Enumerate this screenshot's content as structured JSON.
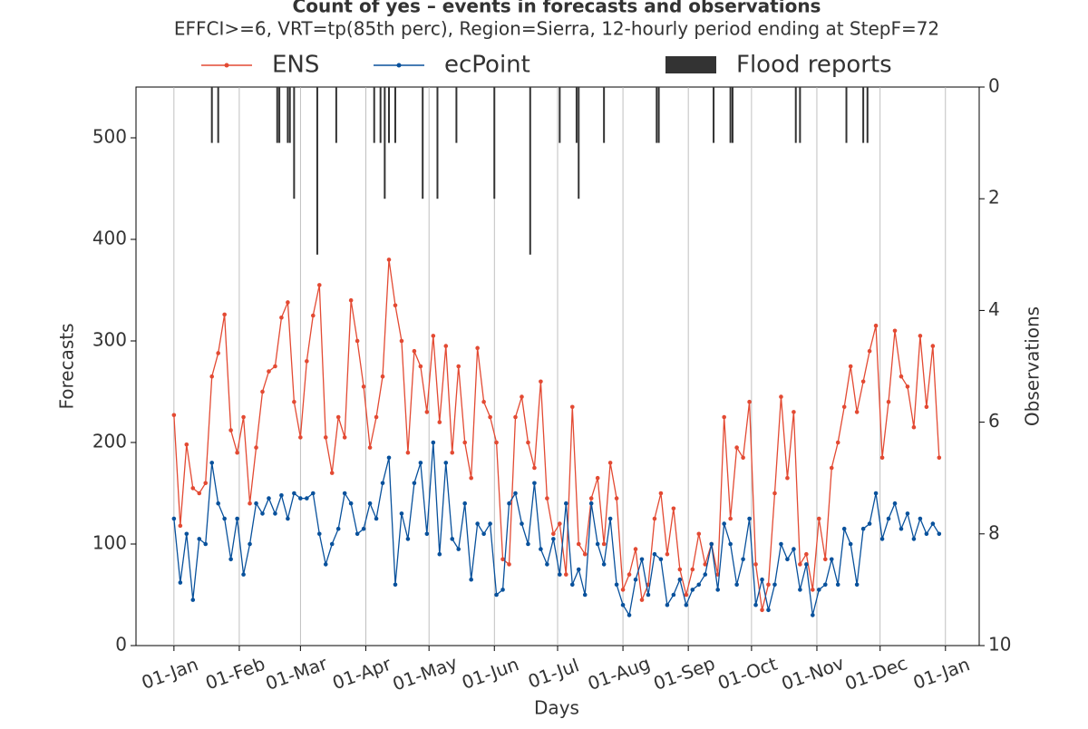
{
  "chart_data": {
    "type": "line",
    "title": "Count of yes – events in forecasts and observations",
    "subtitle": "EFFCI>=6, VRT=tp(85th perc), Region=Sierra, 12-hourly period ending at StepF=72",
    "x_label": "Days",
    "y_label": "Forecasts",
    "y2_label": "Observations",
    "xlim": [
      -18,
      382
    ],
    "xticks": [
      {
        "value": 0,
        "label": "01-Jan"
      },
      {
        "value": 31,
        "label": "01-Feb"
      },
      {
        "value": 60,
        "label": "01-Mar"
      },
      {
        "value": 91,
        "label": "01-Apr"
      },
      {
        "value": 121,
        "label": "01-May"
      },
      {
        "value": 152,
        "label": "01-Jun"
      },
      {
        "value": 182,
        "label": "01-Jul"
      },
      {
        "value": 213,
        "label": "01-Aug"
      },
      {
        "value": 244,
        "label": "01-Sep"
      },
      {
        "value": 274,
        "label": "01-Oct"
      },
      {
        "value": 305,
        "label": "01-Nov"
      },
      {
        "value": 335,
        "label": "01-Dec"
      },
      {
        "value": 366,
        "label": "01-Jan"
      }
    ],
    "ylim": [
      0,
      550
    ],
    "yticks": [
      0,
      100,
      200,
      300,
      400,
      500
    ],
    "y2lim": [
      10,
      0
    ],
    "y2ticks": [
      0,
      2,
      4,
      6,
      8,
      10
    ],
    "grid": "x",
    "legend": "top",
    "series": [
      {
        "name": "ENS",
        "color": "#e34a33",
        "x": [
          0,
          3,
          6,
          9,
          12,
          15,
          18,
          21,
          24,
          27,
          30,
          33,
          36,
          39,
          42,
          45,
          48,
          51,
          54,
          57,
          60,
          63,
          66,
          69,
          72,
          75,
          78,
          81,
          84,
          87,
          90,
          93,
          96,
          99,
          102,
          105,
          108,
          111,
          114,
          117,
          120,
          123,
          126,
          129,
          132,
          135,
          138,
          141,
          144,
          147,
          150,
          153,
          156,
          159,
          162,
          165,
          168,
          171,
          174,
          177,
          180,
          183,
          186,
          189,
          192,
          195,
          198,
          201,
          204,
          207,
          210,
          213,
          216,
          219,
          222,
          225,
          228,
          231,
          234,
          237,
          240,
          243,
          246,
          249,
          252,
          255,
          258,
          261,
          264,
          267,
          270,
          273,
          276,
          279,
          282,
          285,
          288,
          291,
          294,
          297,
          300,
          303,
          306,
          309,
          312,
          315,
          318,
          321,
          324,
          327,
          330,
          333,
          336,
          339,
          342,
          345,
          348,
          351,
          354,
          357,
          360,
          363
        ],
        "values": [
          227,
          118,
          198,
          155,
          150,
          160,
          265,
          288,
          326,
          212,
          190,
          225,
          140,
          195,
          250,
          270,
          275,
          323,
          338,
          240,
          205,
          280,
          325,
          355,
          205,
          170,
          225,
          205,
          340,
          300,
          255,
          195,
          225,
          265,
          380,
          335,
          300,
          190,
          290,
          275,
          230,
          305,
          220,
          295,
          190,
          275,
          200,
          165,
          293,
          240,
          225,
          200,
          85,
          80,
          225,
          245,
          200,
          175,
          260,
          145,
          110,
          120,
          70,
          235,
          100,
          90,
          145,
          165,
          100,
          180,
          145,
          55,
          70,
          95,
          45,
          60,
          125,
          150,
          90,
          135,
          75,
          50,
          75,
          110,
          80,
          100,
          70,
          225,
          125,
          195,
          185,
          240,
          80,
          35,
          60,
          150,
          245,
          165,
          230,
          80,
          90,
          55,
          125,
          85,
          175,
          200,
          235,
          275,
          230,
          260,
          290,
          315,
          185,
          240,
          310,
          265,
          255,
          215,
          305,
          235,
          295,
          185
        ]
      },
      {
        "name": "ecPoint",
        "color": "#08519c",
        "x": [
          0,
          3,
          6,
          9,
          12,
          15,
          18,
          21,
          24,
          27,
          30,
          33,
          36,
          39,
          42,
          45,
          48,
          51,
          54,
          57,
          60,
          63,
          66,
          69,
          72,
          75,
          78,
          81,
          84,
          87,
          90,
          93,
          96,
          99,
          102,
          105,
          108,
          111,
          114,
          117,
          120,
          123,
          126,
          129,
          132,
          135,
          138,
          141,
          144,
          147,
          150,
          153,
          156,
          159,
          162,
          165,
          168,
          171,
          174,
          177,
          180,
          183,
          186,
          189,
          192,
          195,
          198,
          201,
          204,
          207,
          210,
          213,
          216,
          219,
          222,
          225,
          228,
          231,
          234,
          237,
          240,
          243,
          246,
          249,
          252,
          255,
          258,
          261,
          264,
          267,
          270,
          273,
          276,
          279,
          282,
          285,
          288,
          291,
          294,
          297,
          300,
          303,
          306,
          309,
          312,
          315,
          318,
          321,
          324,
          327,
          330,
          333,
          336,
          339,
          342,
          345,
          348,
          351,
          354,
          357,
          360,
          363
        ],
        "values": [
          125,
          62,
          110,
          45,
          105,
          100,
          180,
          140,
          125,
          85,
          125,
          70,
          100,
          140,
          130,
          145,
          130,
          148,
          125,
          150,
          145,
          145,
          150,
          110,
          80,
          100,
          115,
          150,
          140,
          110,
          115,
          140,
          125,
          160,
          185,
          60,
          130,
          105,
          160,
          180,
          110,
          200,
          90,
          180,
          105,
          95,
          140,
          65,
          120,
          110,
          120,
          50,
          55,
          140,
          150,
          120,
          100,
          160,
          95,
          80,
          105,
          70,
          140,
          60,
          75,
          50,
          140,
          100,
          80,
          125,
          60,
          40,
          30,
          65,
          85,
          50,
          90,
          85,
          40,
          50,
          65,
          40,
          55,
          60,
          70,
          100,
          55,
          120,
          100,
          60,
          85,
          125,
          40,
          65,
          35,
          60,
          100,
          85,
          95,
          55,
          80,
          30,
          55,
          60,
          85,
          60,
          115,
          100,
          60,
          115,
          120,
          150,
          105,
          125,
          140,
          115,
          130,
          105,
          125,
          110,
          120,
          110
        ]
      },
      {
        "name": "Flood reports",
        "color": "#333333",
        "axis": "y2",
        "x": [
          18,
          21,
          49,
          50,
          54,
          55,
          57,
          68,
          77,
          95,
          98,
          100,
          102,
          105,
          118,
          125,
          134,
          152,
          169,
          183,
          191,
          192,
          204,
          229,
          230,
          256,
          264,
          265,
          295,
          297,
          319,
          327,
          329
        ],
        "values": [
          1,
          1,
          1,
          1,
          1,
          1,
          2,
          3,
          1,
          1,
          1,
          2,
          1,
          1,
          2,
          2,
          1,
          2,
          3,
          1,
          1,
          2,
          1,
          1,
          1,
          1,
          1,
          1,
          1,
          1,
          1,
          1,
          1
        ]
      }
    ]
  }
}
